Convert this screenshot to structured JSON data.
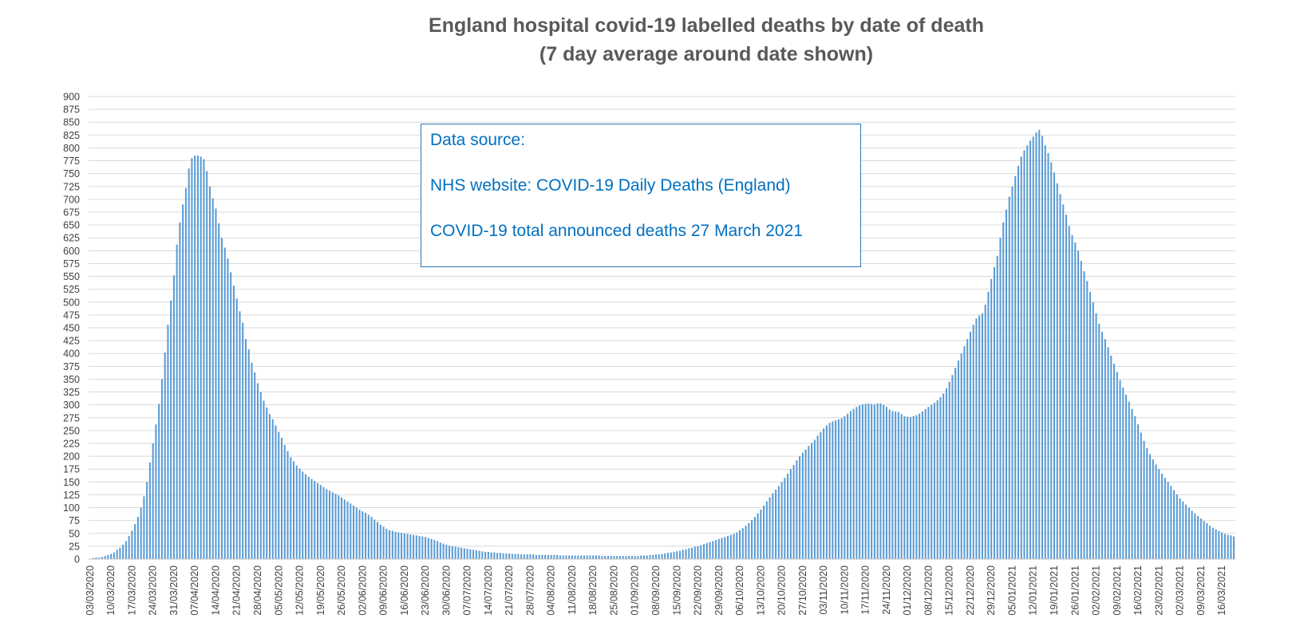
{
  "title": [
    "England hospital covid-19 labelled deaths by date of death",
    "(7 day average around date shown)"
  ],
  "source_box": {
    "heading": "Data source:",
    "line1": "NHS website: COVID-19 Daily Deaths (England)",
    "line2": "COVID-19 total announced deaths 27 March 2021"
  },
  "colors": {
    "bar": "#5b9bd5",
    "grid": "#d9d9d9",
    "box_text": "#0070c0",
    "title": "#595959"
  },
  "chart_data": {
    "type": "bar",
    "title": "England hospital covid-19 labelled deaths by date of death (7 day average around date shown)",
    "xlabel": "",
    "ylabel": "",
    "ylim": [
      0,
      900
    ],
    "y_ticks": [
      0,
      25,
      50,
      75,
      100,
      125,
      150,
      175,
      200,
      225,
      250,
      275,
      300,
      325,
      350,
      375,
      400,
      425,
      450,
      475,
      500,
      525,
      550,
      575,
      600,
      625,
      650,
      675,
      700,
      725,
      750,
      775,
      800,
      825,
      850,
      875,
      900
    ],
    "grid": true,
    "x_start": "03/03/2020",
    "x_end": "24/03/2021",
    "x_tick_labels": [
      "03/03/2020",
      "10/03/2020",
      "17/03/2020",
      "24/03/2020",
      "31/03/2020",
      "07/04/2020",
      "14/04/2020",
      "21/04/2020",
      "28/04/2020",
      "05/05/2020",
      "12/05/2020",
      "19/05/2020",
      "26/05/2020",
      "02/06/2020",
      "09/06/2020",
      "16/06/2020",
      "23/06/2020",
      "30/06/2020",
      "07/07/2020",
      "14/07/2020",
      "21/07/2020",
      "28/07/2020",
      "04/08/2020",
      "11/08/2020",
      "18/08/2020",
      "25/08/2020",
      "01/09/2020",
      "08/09/2020",
      "15/09/2020",
      "22/09/2020",
      "29/09/2020",
      "06/10/2020",
      "13/10/2020",
      "20/10/2020",
      "27/10/2020",
      "03/11/2020",
      "10/11/2020",
      "17/11/2020",
      "24/11/2020",
      "01/12/2020",
      "08/12/2020",
      "15/12/2020",
      "22/12/2020",
      "29/12/2020",
      "05/01/2021",
      "12/01/2021",
      "19/01/2021",
      "26/01/2021",
      "02/02/2021",
      "09/02/2021",
      "16/02/2021",
      "23/02/2021",
      "02/03/2021",
      "09/03/2021",
      "16/03/2021"
    ],
    "values_by_week": [
      [
        1,
        2,
        3,
        3,
        4,
        6,
        8
      ],
      [
        10,
        13,
        18,
        22,
        28,
        35,
        45
      ],
      [
        55,
        68,
        82,
        100,
        122,
        150,
        188
      ],
      [
        225,
        262,
        302,
        350,
        402,
        456,
        503
      ],
      [
        552,
        612,
        655,
        690,
        722,
        760,
        780
      ],
      [
        785,
        785,
        783,
        778,
        755,
        725,
        702
      ],
      [
        682,
        653,
        625,
        606,
        585,
        558,
        532
      ],
      [
        507,
        482,
        460,
        428,
        408,
        382,
        363
      ],
      [
        342,
        325,
        308,
        295,
        282,
        272,
        260
      ],
      [
        247,
        236,
        222,
        210,
        198,
        190,
        182
      ],
      [
        176,
        170,
        165,
        160,
        156,
        152,
        148
      ],
      [
        144,
        140,
        136,
        133,
        130,
        127,
        124
      ],
      [
        120,
        116,
        112,
        108,
        104,
        100,
        96
      ],
      [
        93,
        90,
        86,
        82,
        77,
        72,
        67
      ],
      [
        63,
        59,
        56,
        55,
        53,
        52,
        51
      ],
      [
        50,
        49,
        48,
        47,
        46,
        45,
        44
      ],
      [
        43,
        41,
        39,
        37,
        35,
        32,
        30
      ],
      [
        28,
        26,
        25,
        24,
        23,
        22,
        21
      ],
      [
        20,
        19,
        18,
        17,
        16,
        15,
        14
      ],
      [
        14,
        13,
        13,
        12,
        12,
        11,
        11
      ],
      [
        11,
        10,
        10,
        10,
        9,
        9,
        9
      ],
      [
        9,
        9,
        8,
        8,
        8,
        8,
        8
      ],
      [
        8,
        8,
        8,
        7,
        7,
        7,
        7
      ],
      [
        7,
        7,
        7,
        7,
        7,
        7,
        7
      ],
      [
        7,
        7,
        7,
        6,
        6,
        6,
        6
      ],
      [
        6,
        6,
        6,
        6,
        6,
        6,
        6
      ],
      [
        6,
        6,
        7,
        7,
        7,
        8,
        8
      ],
      [
        9,
        9,
        10,
        11,
        12,
        13,
        14
      ],
      [
        15,
        16,
        18,
        19,
        21,
        22,
        24
      ],
      [
        25,
        27,
        29,
        31,
        33,
        35,
        37
      ],
      [
        39,
        41,
        43,
        45,
        47,
        49,
        52
      ],
      [
        56,
        60,
        65,
        70,
        76,
        82,
        89
      ],
      [
        96,
        104,
        112,
        120,
        128,
        135,
        142
      ],
      [
        150,
        158,
        166,
        175,
        183,
        192,
        200
      ],
      [
        207,
        213,
        220,
        226,
        232,
        240,
        247
      ],
      [
        254,
        260,
        265,
        268,
        270,
        272,
        274
      ],
      [
        278,
        283,
        288,
        292,
        296,
        299,
        301
      ],
      [
        302,
        303,
        302,
        301,
        303,
        303,
        300
      ],
      [
        296,
        291,
        288,
        287,
        286,
        282,
        278
      ],
      [
        277,
        276,
        278,
        280,
        283,
        287,
        292
      ],
      [
        296,
        300,
        304,
        309,
        315,
        322,
        332
      ],
      [
        345,
        358,
        372,
        386,
        400,
        414,
        428
      ],
      [
        442,
        456,
        468,
        474,
        478,
        495,
        520
      ],
      [
        545,
        568,
        590,
        625,
        655,
        680,
        705
      ],
      [
        725,
        745,
        765,
        783,
        795,
        805,
        814
      ],
      [
        822,
        830,
        835,
        823,
        805,
        790,
        772
      ],
      [
        752,
        731,
        710,
        690,
        670,
        648,
        630
      ],
      [
        616,
        600,
        580,
        560,
        541,
        520,
        500
      ],
      [
        478,
        458,
        442,
        428,
        412,
        396,
        380
      ],
      [
        364,
        348,
        334,
        320,
        306,
        292,
        278
      ],
      [
        262,
        246,
        230,
        216,
        204,
        194,
        184
      ],
      [
        175,
        166,
        158,
        150,
        142,
        134,
        126
      ],
      [
        118,
        112,
        106,
        100,
        94,
        89,
        84
      ],
      [
        79,
        74,
        70,
        65,
        61,
        58,
        55
      ],
      [
        52,
        49,
        47,
        46,
        44
      ]
    ]
  }
}
